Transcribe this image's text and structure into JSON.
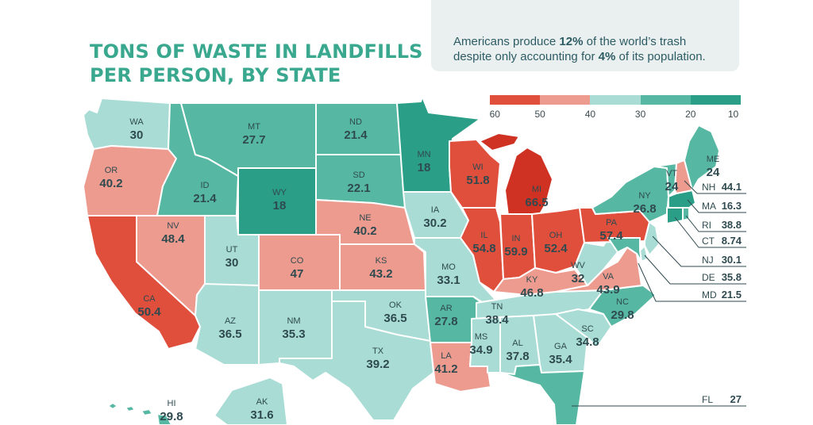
{
  "title": {
    "line1": "TONS OF WASTE IN LANDFILLS",
    "line2": "PER PERSON, BY STATE"
  },
  "callout": {
    "pre": "Americans produce ",
    "b1": "12%",
    "mid": " of the world’s trash",
    "line2": "despite only accounting for ",
    "b2": "4%",
    "post": " of its population."
  },
  "legend": {
    "ticks": [
      "60",
      "50",
      "40",
      "30",
      "20",
      "10"
    ],
    "colors": [
      "#e04e3c",
      "#ee9b8f",
      "#a8dcd4",
      "#56b8a3",
      "#2a9e86"
    ]
  },
  "colors": {
    "red": "#e04e3c",
    "darkred": "#cf3122",
    "salmon": "#ee9b8f",
    "light": "#a8dcd4",
    "mid": "#56b8a3",
    "teal": "#2a9e86"
  },
  "states": {
    "WA": {
      "label": "WA",
      "value": "30"
    },
    "OR": {
      "label": "OR",
      "value": "40.2"
    },
    "CA": {
      "label": "CA",
      "value": "50.4"
    },
    "NV": {
      "label": "NV",
      "value": "48.4"
    },
    "ID": {
      "label": "ID",
      "value": "21.4"
    },
    "MT": {
      "label": "MT",
      "value": "27.7"
    },
    "WY": {
      "label": "WY",
      "value": "18"
    },
    "UT": {
      "label": "UT",
      "value": "30"
    },
    "AZ": {
      "label": "AZ",
      "value": "36.5"
    },
    "CO": {
      "label": "CO",
      "value": "47"
    },
    "NM": {
      "label": "NM",
      "value": "35.3"
    },
    "ND": {
      "label": "ND",
      "value": "21.4"
    },
    "SD": {
      "label": "SD",
      "value": "22.1"
    },
    "NE": {
      "label": "NE",
      "value": "40.2"
    },
    "KS": {
      "label": "KS",
      "value": "43.2"
    },
    "OK": {
      "label": "OK",
      "value": "36.5"
    },
    "TX": {
      "label": "TX",
      "value": "39.2"
    },
    "MN": {
      "label": "MN",
      "value": "18"
    },
    "IA": {
      "label": "IA",
      "value": "30.2"
    },
    "MO": {
      "label": "MO",
      "value": "33.1"
    },
    "AR": {
      "label": "AR",
      "value": "27.8"
    },
    "LA": {
      "label": "LA",
      "value": "41.2"
    },
    "WI": {
      "label": "WI",
      "value": "51.8"
    },
    "IL": {
      "label": "IL",
      "value": "54.8"
    },
    "MI": {
      "label": "MI",
      "value": "66.5"
    },
    "IN": {
      "label": "IN",
      "value": "59.9"
    },
    "OH": {
      "label": "OH",
      "value": "52.4"
    },
    "KY": {
      "label": "KY",
      "value": "46.8"
    },
    "TN": {
      "label": "TN",
      "value": "38.4"
    },
    "MS": {
      "label": "MS",
      "value": "34.9"
    },
    "AL": {
      "label": "AL",
      "value": "37.8"
    },
    "GA": {
      "label": "GA",
      "value": "35.4"
    },
    "FL": {
      "label": "FL",
      "value": "27"
    },
    "SC": {
      "label": "SC",
      "value": "34.8"
    },
    "NC": {
      "label": "NC",
      "value": "29.8"
    },
    "VA": {
      "label": "VA",
      "value": "43.9"
    },
    "WV": {
      "label": "WV",
      "value": "32"
    },
    "PA": {
      "label": "PA",
      "value": "57.4"
    },
    "NY": {
      "label": "NY",
      "value": "26.8"
    },
    "VT": {
      "label": "VT",
      "value": "24"
    },
    "ME": {
      "label": "ME",
      "value": "24"
    },
    "NH": {
      "label": "NH",
      "value": "44.1"
    },
    "MA": {
      "label": "MA",
      "value": "16.3"
    },
    "RI": {
      "label": "RI",
      "value": "38.8"
    },
    "CT": {
      "label": "CT",
      "value": "8.74"
    },
    "NJ": {
      "label": "NJ",
      "value": "30.1"
    },
    "DE": {
      "label": "DE",
      "value": "35.8"
    },
    "MD": {
      "label": "MD",
      "value": "21.5"
    },
    "HI": {
      "label": "HI",
      "value": "29.8"
    },
    "AK": {
      "label": "AK",
      "value": "31.6"
    }
  }
}
